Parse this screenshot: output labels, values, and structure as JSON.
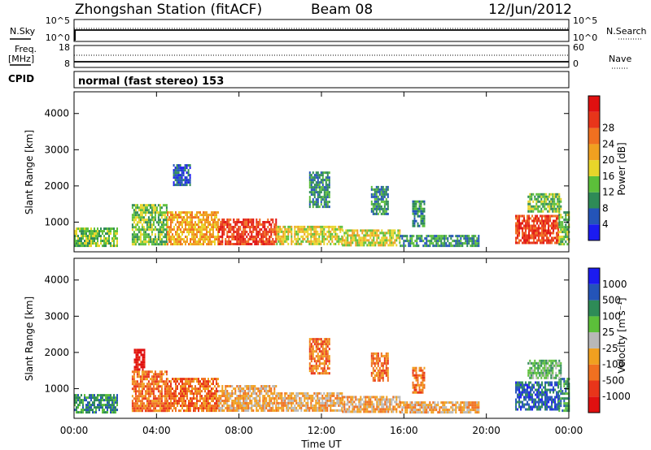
{
  "header": {
    "station": "Zhongshan Station (fitACF)",
    "beam": "Beam 08",
    "date": "12/Jun/2012"
  },
  "top_panels": {
    "nsky_label": "N.Sky",
    "nsky_ticks": [
      "10^5",
      "10^0"
    ],
    "nsearch_label": "N.Search",
    "nsearch_ticks": [
      "10^5",
      "10^0"
    ],
    "freq_label_1": "Freq.",
    "freq_label_2": "[MHz]",
    "freq_ticks": [
      "18",
      "8"
    ],
    "nave_label": "Nave",
    "nave_ticks": [
      "60",
      "0"
    ],
    "cpid_label": "CPID",
    "mode_text": "normal (fast stereo) 153"
  },
  "chart_data": [
    {
      "type": "heatmap",
      "name": "power",
      "ylabel": "Slant Range [km]",
      "xlabel": "Time UT",
      "xlim": [
        0,
        24
      ],
      "ylim": [
        180,
        4600
      ],
      "x_ticks": [
        "00:00",
        "04:00",
        "08:00",
        "12:00",
        "16:00",
        "20:00",
        "00:00"
      ],
      "y_ticks": [
        1000,
        2000,
        3000,
        4000
      ],
      "colorbar": {
        "label": "Power [dB]",
        "ticks": [
          "4",
          "8",
          "12",
          "16",
          "20",
          "24",
          "28"
        ],
        "colors": [
          "#1b1bf0",
          "#2454b8",
          "#2e8b57",
          "#5cbf3a",
          "#e8d52a",
          "#f0a020",
          "#f07020",
          "#e8351a",
          "#e01010"
        ]
      },
      "regions": [
        {
          "t0": 0.0,
          "t1": 2.1,
          "r0": 330,
          "r1": 850,
          "c": 3
        },
        {
          "t0": 2.8,
          "t1": 4.5,
          "r0": 400,
          "r1": 1500,
          "c": 3
        },
        {
          "t0": 4.5,
          "t1": 7.0,
          "r0": 380,
          "r1": 1300,
          "c": 5
        },
        {
          "t0": 7.0,
          "t1": 9.8,
          "r0": 360,
          "r1": 1100,
          "c": 7
        },
        {
          "t0": 9.8,
          "t1": 13.0,
          "r0": 380,
          "r1": 900,
          "c": 4
        },
        {
          "t0": 13.0,
          "t1": 15.8,
          "r0": 360,
          "r1": 800,
          "c": 4
        },
        {
          "t0": 15.8,
          "t1": 19.6,
          "r0": 330,
          "r1": 650,
          "c": 2
        },
        {
          "t0": 21.4,
          "t1": 23.5,
          "r0": 400,
          "r1": 1200,
          "c": 7
        },
        {
          "t0": 23.5,
          "t1": 24.0,
          "r0": 400,
          "r1": 1300,
          "c": 3
        },
        {
          "t0": 4.8,
          "t1": 5.6,
          "r0": 2000,
          "r1": 2600,
          "c": 1
        },
        {
          "t0": 11.4,
          "t1": 12.4,
          "r0": 1400,
          "r1": 2400,
          "c": 2
        },
        {
          "t0": 14.4,
          "t1": 15.2,
          "r0": 1200,
          "r1": 2000,
          "c": 2
        },
        {
          "t0": 16.4,
          "t1": 17.0,
          "r0": 900,
          "r1": 1600,
          "c": 2
        },
        {
          "t0": 22.0,
          "t1": 23.6,
          "r0": 1300,
          "r1": 1800,
          "c": 3
        }
      ]
    },
    {
      "type": "heatmap",
      "name": "velocity",
      "ylabel": "Slant Range [km]",
      "xlabel": "Time UT",
      "xlim": [
        0,
        24
      ],
      "ylim": [
        180,
        4600
      ],
      "x_ticks": [
        "00:00",
        "04:00",
        "08:00",
        "12:00",
        "16:00",
        "20:00",
        "00:00"
      ],
      "y_ticks": [
        1000,
        2000,
        3000,
        4000
      ],
      "colorbar": {
        "label": "Velocity [m s⁻¹]",
        "ticks": [
          "1000",
          "500",
          "100",
          "25",
          "-25",
          "-100",
          "-500",
          "-1000"
        ],
        "colors": [
          "#1b1bf0",
          "#2454b8",
          "#2e8b57",
          "#5cbf3a",
          "#b8b8b8",
          "#f0a020",
          "#f07020",
          "#e8351a",
          "#e01010"
        ]
      },
      "regions": [
        {
          "t0": 0.0,
          "t1": 2.1,
          "r0": 330,
          "r1": 850,
          "c": 2
        },
        {
          "t0": 2.8,
          "t1": 4.5,
          "r0": 400,
          "r1": 1500,
          "c": 6
        },
        {
          "t0": 4.5,
          "t1": 7.0,
          "r0": 380,
          "r1": 1300,
          "c": 6
        },
        {
          "t0": 7.0,
          "t1": 9.8,
          "r0": 360,
          "r1": 1100,
          "c": 5
        },
        {
          "t0": 9.8,
          "t1": 13.0,
          "r0": 380,
          "r1": 900,
          "c": 5
        },
        {
          "t0": 13.0,
          "t1": 15.8,
          "r0": 360,
          "r1": 800,
          "c": 5
        },
        {
          "t0": 15.8,
          "t1": 19.6,
          "r0": 330,
          "r1": 650,
          "c": 5
        },
        {
          "t0": 21.4,
          "t1": 23.5,
          "r0": 400,
          "r1": 1200,
          "c": 1
        },
        {
          "t0": 23.5,
          "t1": 24.0,
          "r0": 400,
          "r1": 1300,
          "c": 2
        },
        {
          "t0": 2.9,
          "t1": 3.4,
          "r0": 1500,
          "r1": 2100,
          "c": 8
        },
        {
          "t0": 11.4,
          "t1": 12.4,
          "r0": 1400,
          "r1": 2400,
          "c": 6
        },
        {
          "t0": 14.4,
          "t1": 15.2,
          "r0": 1200,
          "r1": 2000,
          "c": 6
        },
        {
          "t0": 16.4,
          "t1": 17.0,
          "r0": 900,
          "r1": 1600,
          "c": 6
        },
        {
          "t0": 22.0,
          "t1": 23.6,
          "r0": 1300,
          "r1": 1800,
          "c": 3
        }
      ]
    }
  ]
}
